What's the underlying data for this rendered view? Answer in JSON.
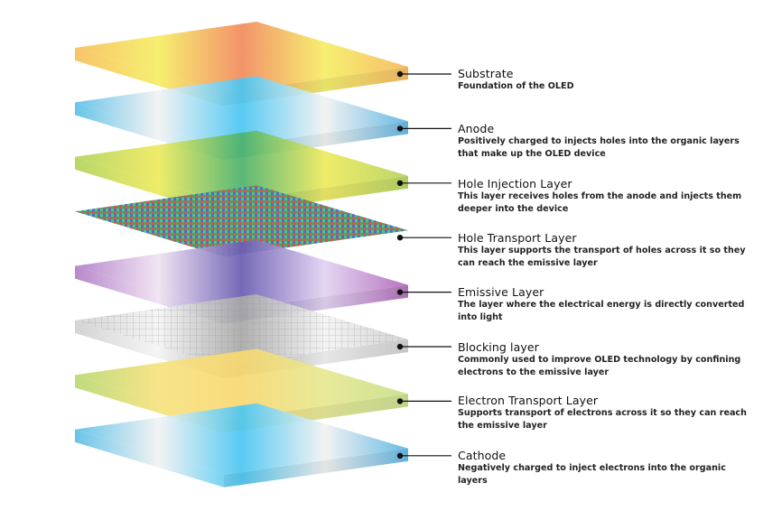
{
  "layers": [
    {
      "title": "Substrate",
      "description": "Foundation of the OLED",
      "colors": [
        "#f7bf5c",
        "#f5ee64",
        "#f28a5e",
        "#f5ee64",
        "#f7b85a"
      ]
    },
    {
      "title": "Anode",
      "description": "Positively charged to injects holes into the organic layers that make up the OLED device",
      "colors": [
        "#5bbfe8",
        "#f2f2f2",
        "#49c6f2",
        "#f2f2f2",
        "#5ab4e2"
      ]
    },
    {
      "title": "Hole Injection Layer",
      "description": "This layer receives holes from the anode and injects them deeper into the device",
      "colors": [
        "#b2d35c",
        "#eeea5c",
        "#4cb26c",
        "#eeea5c",
        "#b5d35a"
      ]
    },
    {
      "title": "Hole Transport Layer",
      "description": "This layer supports the transport of holes across it so they can reach the emissive layer",
      "colors": [
        "#e04a4a",
        "#3aa85a",
        "#3a6ad8",
        "#3aa85a",
        "#e04a4a"
      ]
    },
    {
      "title": "Emissive Layer",
      "description": "The layer where the electrical energy is directly converted into light",
      "colors": [
        "#b07ec6",
        "#f0e2f2",
        "#6a5cb2",
        "#e2d2f2",
        "#b068b8"
      ]
    },
    {
      "title": "Blocking layer",
      "description": "Commonly used to improve OLED technology by confining electrons to the emissive layer",
      "colors": [
        "#d0d0d0",
        "#f4f4f4",
        "#a8a8a8",
        "#f4f4f4",
        "#cfcfcf"
      ]
    },
    {
      "title": "Electron Transport Layer",
      "description": "Supports transport of electrons across it so they can reach the emissive layer",
      "colors": [
        "#b8d872",
        "#f6e27e",
        "#f8d870",
        "#e6e890",
        "#c8e08a"
      ]
    },
    {
      "title": "Cathode",
      "description": "Negatively charged to inject electrons into the organic layers",
      "colors": [
        "#5bbfe8",
        "#f2f2f2",
        "#49c6f2",
        "#f2f2f2",
        "#5ab4e2"
      ]
    }
  ]
}
